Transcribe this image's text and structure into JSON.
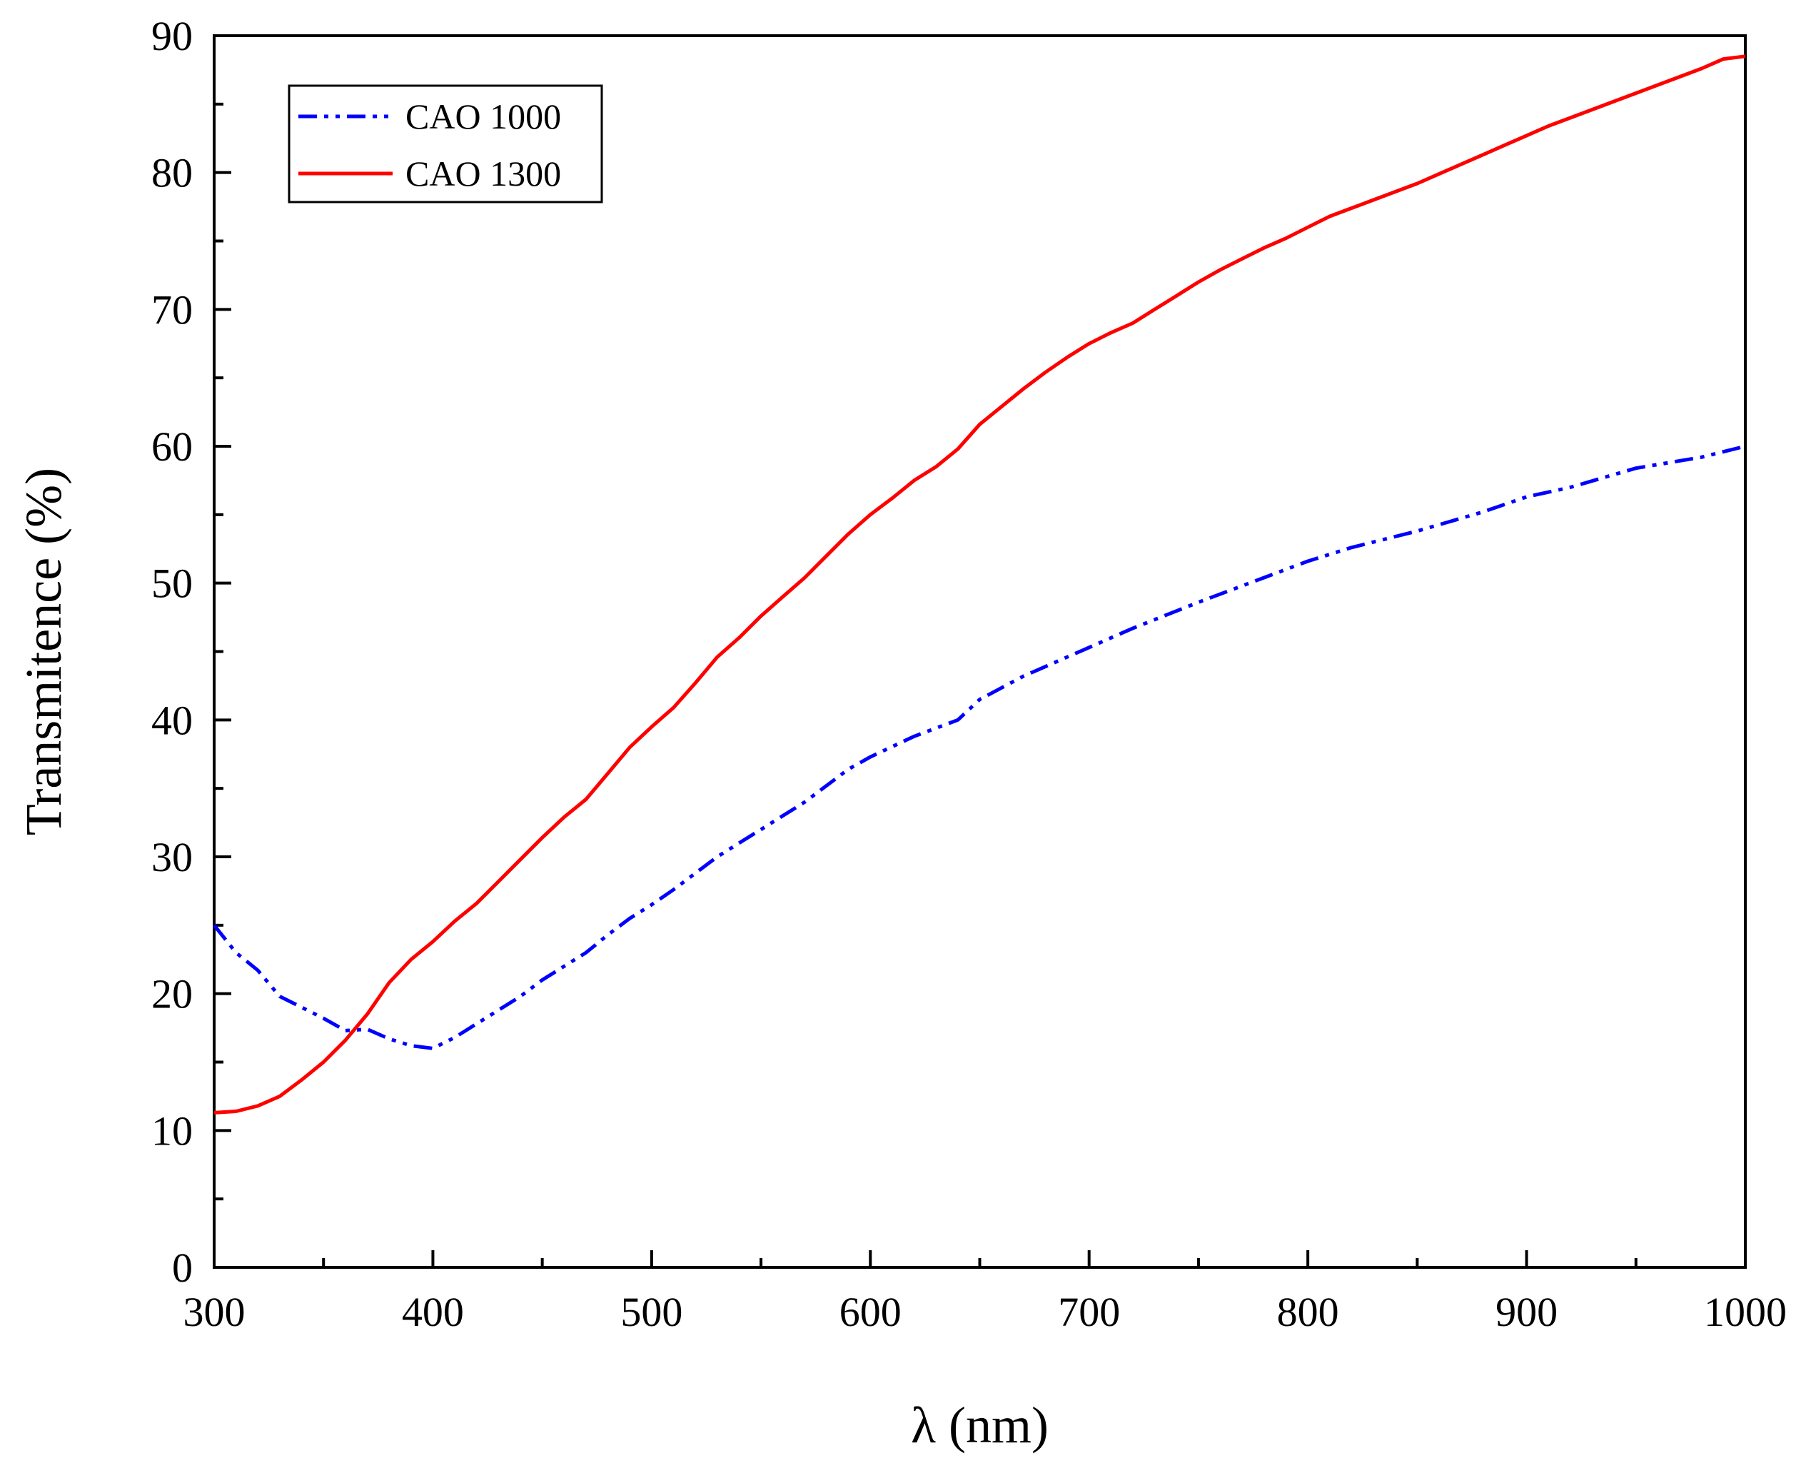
{
  "chart_data": {
    "type": "line",
    "title": "",
    "xlabel": "λ (nm)",
    "ylabel": "Transmitence (%)",
    "xlim": [
      300,
      1000
    ],
    "ylim": [
      0,
      90
    ],
    "xticks": [
      300,
      400,
      500,
      600,
      700,
      800,
      900,
      1000
    ],
    "yticks": [
      0,
      10,
      20,
      30,
      40,
      50,
      60,
      70,
      80,
      90
    ],
    "grid": false,
    "legend_position": "top-left",
    "series": [
      {
        "name": "CAO 1000",
        "color": "#0000ff",
        "style": "dash-dot-dot",
        "x": [
          300,
          310,
          320,
          330,
          340,
          350,
          360,
          370,
          380,
          390,
          400,
          410,
          420,
          430,
          440,
          450,
          460,
          470,
          480,
          490,
          500,
          510,
          520,
          530,
          540,
          550,
          560,
          570,
          580,
          590,
          600,
          620,
          640,
          650,
          670,
          700,
          720,
          750,
          780,
          800,
          820,
          850,
          880,
          900,
          920,
          950,
          980,
          1000
        ],
        "values": [
          25.0,
          23.0,
          21.7,
          19.8,
          19.0,
          18.2,
          17.3,
          17.4,
          16.7,
          16.2,
          16.0,
          16.8,
          17.8,
          18.8,
          19.8,
          21.0,
          22.0,
          23.0,
          24.3,
          25.5,
          26.5,
          27.6,
          28.8,
          30.0,
          31.0,
          32.0,
          33.0,
          34.0,
          35.2,
          36.4,
          37.3,
          38.8,
          40.0,
          41.5,
          43.2,
          45.3,
          46.7,
          48.6,
          50.4,
          51.6,
          52.6,
          53.8,
          55.2,
          56.3,
          57.0,
          58.4,
          59.2,
          60.0
        ]
      },
      {
        "name": "CAO 1300",
        "color": "#ff0000",
        "style": "solid",
        "x": [
          300,
          310,
          320,
          330,
          340,
          350,
          360,
          370,
          380,
          390,
          400,
          410,
          420,
          430,
          440,
          450,
          460,
          470,
          480,
          490,
          500,
          510,
          520,
          530,
          540,
          550,
          560,
          570,
          580,
          590,
          600,
          610,
          620,
          630,
          640,
          650,
          660,
          670,
          680,
          690,
          700,
          710,
          720,
          730,
          740,
          750,
          760,
          770,
          780,
          790,
          800,
          810,
          820,
          830,
          840,
          850,
          860,
          870,
          880,
          890,
          900,
          910,
          920,
          930,
          940,
          950,
          960,
          970,
          980,
          990,
          1000
        ],
        "values": [
          11.3,
          11.4,
          11.8,
          12.5,
          13.7,
          15.0,
          16.6,
          18.5,
          20.8,
          22.5,
          23.8,
          25.3,
          26.6,
          28.2,
          29.8,
          31.4,
          32.9,
          34.2,
          36.1,
          38.0,
          39.5,
          40.9,
          42.7,
          44.6,
          46.0,
          47.6,
          49.0,
          50.4,
          52.0,
          53.6,
          55.0,
          56.2,
          57.5,
          58.5,
          59.8,
          61.6,
          62.9,
          64.2,
          65.4,
          66.5,
          67.5,
          68.3,
          69.0,
          70.0,
          71.0,
          72.0,
          72.9,
          73.7,
          74.5,
          75.2,
          76.0,
          76.8,
          77.4,
          78.0,
          78.6,
          79.2,
          79.9,
          80.6,
          81.3,
          82.0,
          82.7,
          83.4,
          84.0,
          84.6,
          85.2,
          85.8,
          86.4,
          87.0,
          87.6,
          88.3,
          88.5
        ]
      }
    ]
  }
}
